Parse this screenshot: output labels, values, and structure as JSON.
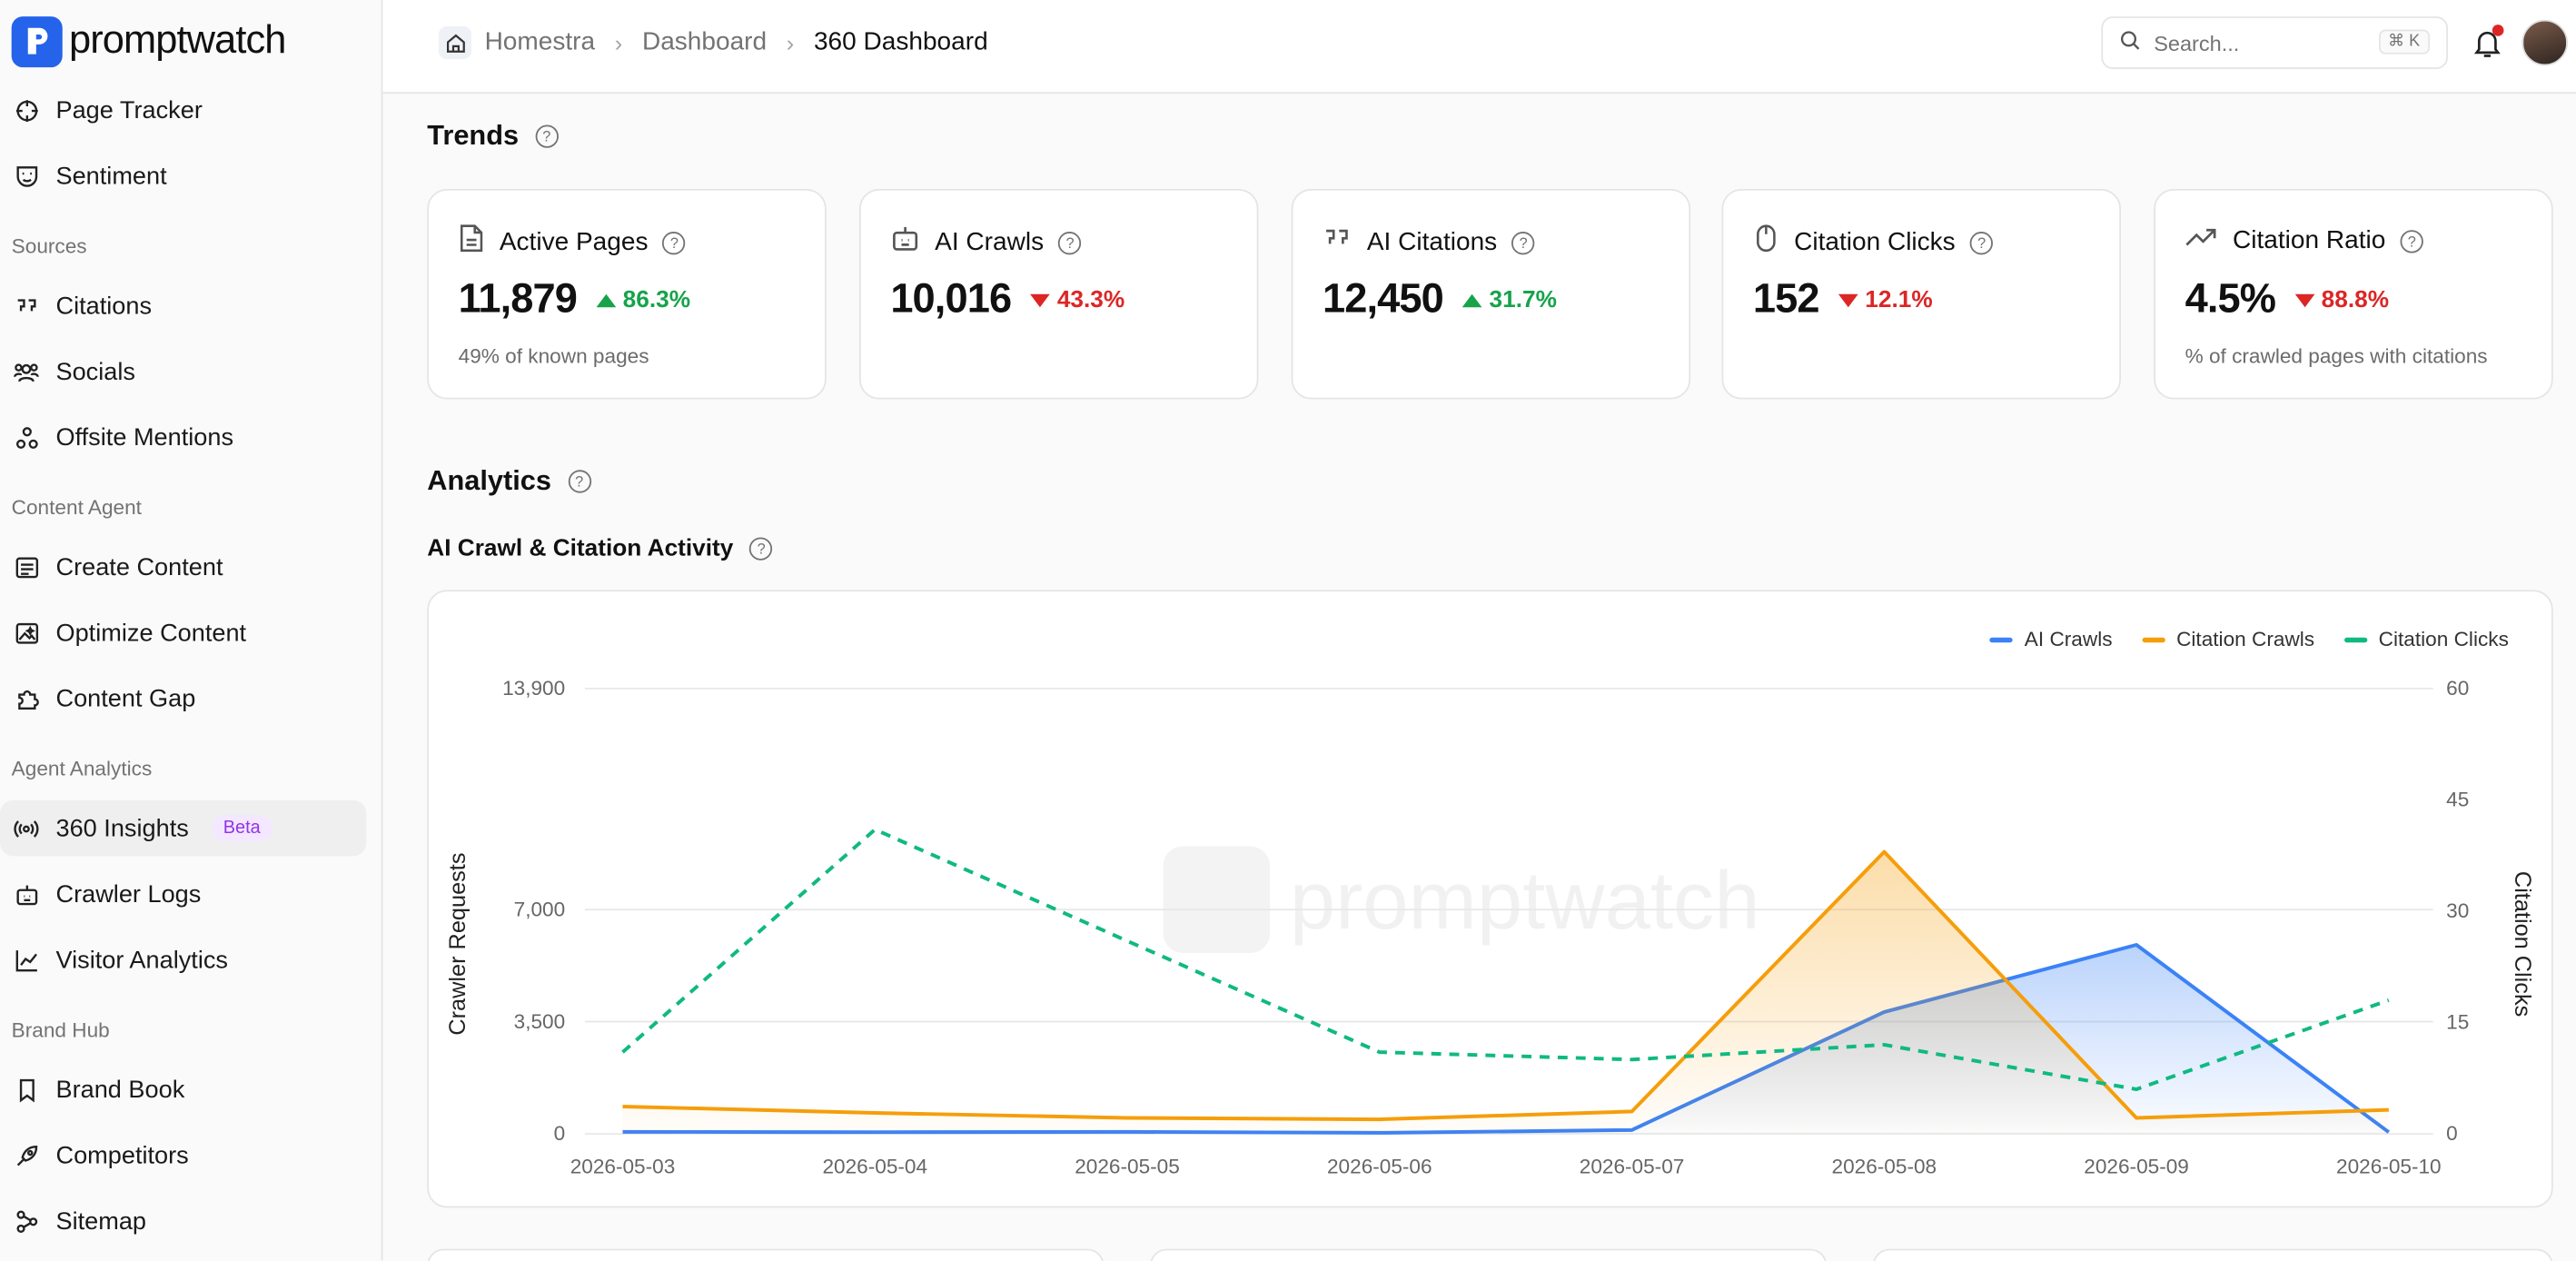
{
  "app": {
    "name": "promptwatch"
  },
  "header": {
    "breadcrumb": [
      "Homestra",
      "Dashboard",
      "360 Dashboard"
    ],
    "search_placeholder": "Search...",
    "search_shortcut": "⌘ K"
  },
  "sidebar": {
    "items_top": [
      {
        "label": "Page Tracker",
        "icon": "crosshair-icon"
      },
      {
        "label": "Sentiment",
        "icon": "mask-icon"
      }
    ],
    "sections": [
      {
        "title": "Sources",
        "items": [
          {
            "label": "Citations",
            "icon": "quote-icon"
          },
          {
            "label": "Socials",
            "icon": "users-icon"
          },
          {
            "label": "Offsite Mentions",
            "icon": "nodes-icon"
          }
        ]
      },
      {
        "title": "Content Agent",
        "items": [
          {
            "label": "Create Content",
            "icon": "document-list-icon"
          },
          {
            "label": "Optimize Content",
            "icon": "image-sparkle-icon"
          },
          {
            "label": "Content Gap",
            "icon": "puzzle-icon"
          }
        ]
      },
      {
        "title": "Agent Analytics",
        "items": [
          {
            "label": "360 Insights",
            "icon": "broadcast-icon",
            "badge": "Beta"
          },
          {
            "label": "Crawler Logs",
            "icon": "robot-icon"
          },
          {
            "label": "Visitor Analytics",
            "icon": "line-chart-icon"
          }
        ]
      },
      {
        "title": "Brand Hub",
        "items": [
          {
            "label": "Brand Book",
            "icon": "bookmark-icon"
          },
          {
            "label": "Competitors",
            "icon": "rocket-icon"
          },
          {
            "label": "Sitemap",
            "icon": "sitemap-icon"
          }
        ]
      }
    ]
  },
  "trends": {
    "title": "Trends",
    "cards": [
      {
        "title": "Active Pages",
        "value": "11,879",
        "delta": "86.3%",
        "direction": "up",
        "sub": "49% of known pages",
        "icon": "file-icon"
      },
      {
        "title": "AI Crawls",
        "value": "10,016",
        "delta": "43.3%",
        "direction": "down",
        "sub": "",
        "icon": "robot-icon"
      },
      {
        "title": "AI Citations",
        "value": "12,450",
        "delta": "31.7%",
        "direction": "up",
        "sub": "",
        "icon": "quote-icon"
      },
      {
        "title": "Citation Clicks",
        "value": "152",
        "delta": "12.1%",
        "direction": "down",
        "sub": "",
        "icon": "mouse-icon"
      },
      {
        "title": "Citation Ratio",
        "value": "4.5%",
        "delta": "88.8%",
        "direction": "down",
        "sub": "% of crawled pages with citations",
        "icon": "trending-up-icon"
      }
    ]
  },
  "analytics": {
    "title": "Analytics",
    "chart_title": "AI Crawl & Citation Activity"
  },
  "chart_data": {
    "type": "line",
    "x": [
      "2026-05-03",
      "2026-05-04",
      "2026-05-05",
      "2026-05-06",
      "2026-05-07",
      "2026-05-08",
      "2026-05-09",
      "2026-05-10"
    ],
    "series": [
      {
        "name": "AI Crawls",
        "axis": "left",
        "color": "#3b82f6",
        "style": "solid",
        "fill": true,
        "values": [
          60,
          50,
          60,
          30,
          120,
          3800,
          5900,
          50
        ]
      },
      {
        "name": "Citation Crawls",
        "axis": "left",
        "color": "#f59e0b",
        "style": "solid",
        "fill": true,
        "values": [
          850,
          650,
          500,
          450,
          700,
          8800,
          500,
          750
        ]
      },
      {
        "name": "Citation Clicks",
        "axis": "right",
        "color": "#10b981",
        "style": "dashed",
        "fill": false,
        "values": [
          11,
          41,
          26,
          11,
          10,
          12,
          6,
          18
        ]
      }
    ],
    "ylabel": "Crawler Requests",
    "y2label": "Citation Clicks",
    "ylim": [
      0,
      13900
    ],
    "y2lim": [
      0,
      60
    ],
    "yticks": [
      "0",
      "3,500",
      "7,000",
      "13,900"
    ],
    "yticks_values": [
      0,
      3500,
      7000,
      13900
    ],
    "y2ticks": [
      "0",
      "15",
      "30",
      "45",
      "60"
    ],
    "y2ticks_values": [
      0,
      15,
      30,
      45,
      60
    ],
    "grid": true,
    "legend": "top-right"
  },
  "colors": {
    "brand": "#2563eb",
    "up": "#16a34a",
    "down": "#dc2626"
  }
}
